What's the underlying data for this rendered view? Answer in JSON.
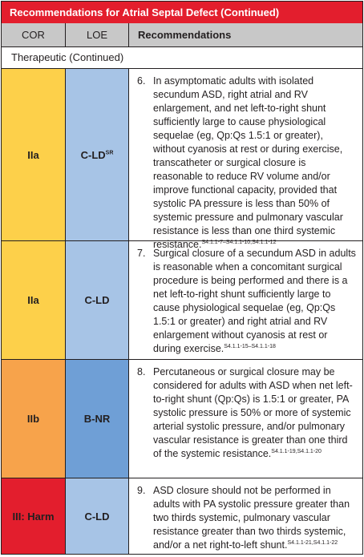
{
  "table": {
    "title": "Recommendations for Atrial Septal Defect (Continued)",
    "headers": {
      "cor": "COR",
      "loe": "LOE",
      "recommendations": "Recommendations"
    },
    "section": "Therapeutic (Continued)",
    "colors": {
      "title_bg": "#e31e2d",
      "header_bg": "#c8c8c8",
      "cor_IIa": "#fdd04a",
      "cor_IIb": "#f7a34b",
      "cor_III_Harm": "#e31e2d",
      "loe_C_LD": "#a7c4e6",
      "loe_B_NR": "#6f9fd6"
    },
    "rows": [
      {
        "cor": "IIa",
        "loe": "C-LD",
        "loe_sup": "SR",
        "number": "6.",
        "text": "In asymptomatic adults with isolated secundum ASD, right atrial and RV enlargement, and net left-to-right shunt sufficiently large to cause physiological sequelae (eg, Qp:Qs 1.5:1 or greater), without cyanosis at rest or during exercise, transcatheter or surgical closure is reasonable to reduce RV volume and/or improve functional capacity, provided that systolic PA pressure is less than 50% of systemic pressure and pulmonary vascular resistance is less than one third systemic resistance.",
        "refs": "S4.1.1-7–S4.1.1-10,S4.1.1-12"
      },
      {
        "cor": "IIa",
        "loe": "C-LD",
        "loe_sup": "",
        "number": "7.",
        "text": "Surgical closure of a secundum ASD in adults is reasonable when a concomitant surgical procedure is being performed and there is a net left-to-right shunt sufficiently large to cause physiological sequelae (eg, Qp:Qs 1.5:1 or greater) and right atrial and RV enlargement without cyanosis at rest or during exercise.",
        "refs": "S4.1.1-15–S4.1.1-18"
      },
      {
        "cor": "IIb",
        "loe": "B-NR",
        "loe_sup": "",
        "number": "8.",
        "text": "Percutaneous or surgical closure may be considered for adults with ASD when net left-to-right shunt (Qp:Qs) is 1.5:1 or greater, PA systolic pressure is 50% or more of systemic arterial systolic pressure, and/or pulmonary vascular resistance is greater than one third of the systemic resistance.",
        "refs": "S4.1.1-19,S4.1.1-20"
      },
      {
        "cor": "III: Harm",
        "loe": "C-LD",
        "loe_sup": "",
        "number": "9.",
        "text": "ASD closure should not be performed in adults with PA systolic pressure greater than two thirds systemic, pulmonary vascular resistance greater than two thirds systemic, and/or a net right-to-left shunt.",
        "refs": "S4.1.1-21,S4.1.1-22"
      }
    ]
  }
}
